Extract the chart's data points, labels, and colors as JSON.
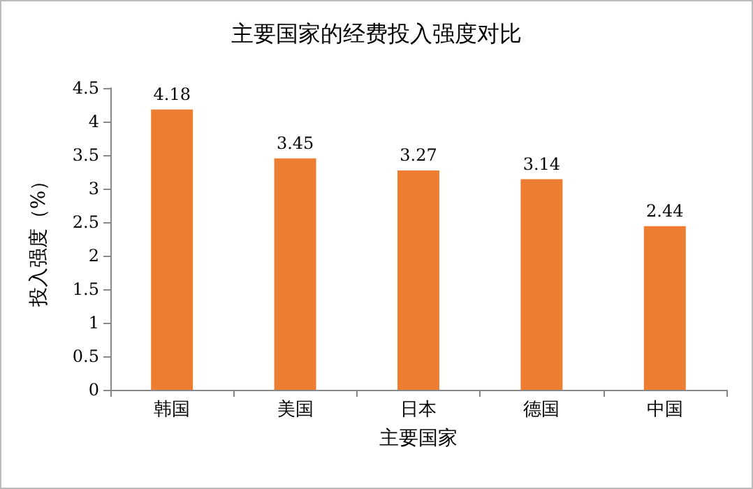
{
  "chart_data": {
    "type": "bar",
    "title": "主要国家的经费投入强度对比",
    "xlabel": "主要国家",
    "ylabel": "投入强度（%）",
    "categories": [
      "韩国",
      "美国",
      "日本",
      "德国",
      "中国"
    ],
    "values": [
      4.18,
      3.45,
      3.27,
      3.14,
      2.44
    ],
    "color": "#ed7d31",
    "ylim": [
      0,
      4.5
    ],
    "yticks": [
      0,
      0.5,
      1,
      1.5,
      2,
      2.5,
      3,
      3.5,
      4,
      4.5
    ],
    "grid": false,
    "data_labels": true
  }
}
